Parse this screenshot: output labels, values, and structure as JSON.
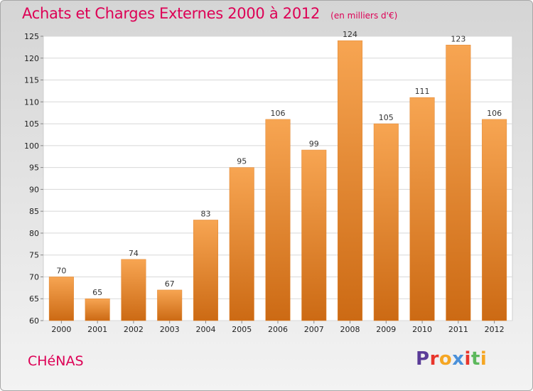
{
  "chart_data": {
    "type": "bar",
    "title": "Achats et Charges Externes 2000 à 2012",
    "subtitle": "(en milliers d'€)",
    "categories": [
      "2000",
      "2001",
      "2002",
      "2003",
      "2004",
      "2005",
      "2006",
      "2007",
      "2008",
      "2009",
      "2010",
      "2011",
      "2012"
    ],
    "values": [
      70,
      65,
      74,
      67,
      83,
      95,
      106,
      99,
      124,
      105,
      111,
      123,
      106
    ],
    "ylim": [
      60,
      125
    ],
    "yticks": [
      60,
      65,
      70,
      75,
      80,
      85,
      90,
      95,
      100,
      105,
      110,
      115,
      120,
      125
    ],
    "xlabel": "",
    "ylabel": "",
    "grid": true,
    "bar_color": "#f0963c"
  },
  "footer": {
    "commune": "CHéNAS",
    "logo": "Proxiti"
  },
  "colors": {
    "title": "#dd0055",
    "logo_letters": [
      "#5a3c98",
      "#e8352b",
      "#f5a623",
      "#4a90d9",
      "#e8352b",
      "#5cb85c",
      "#f5a623"
    ]
  }
}
